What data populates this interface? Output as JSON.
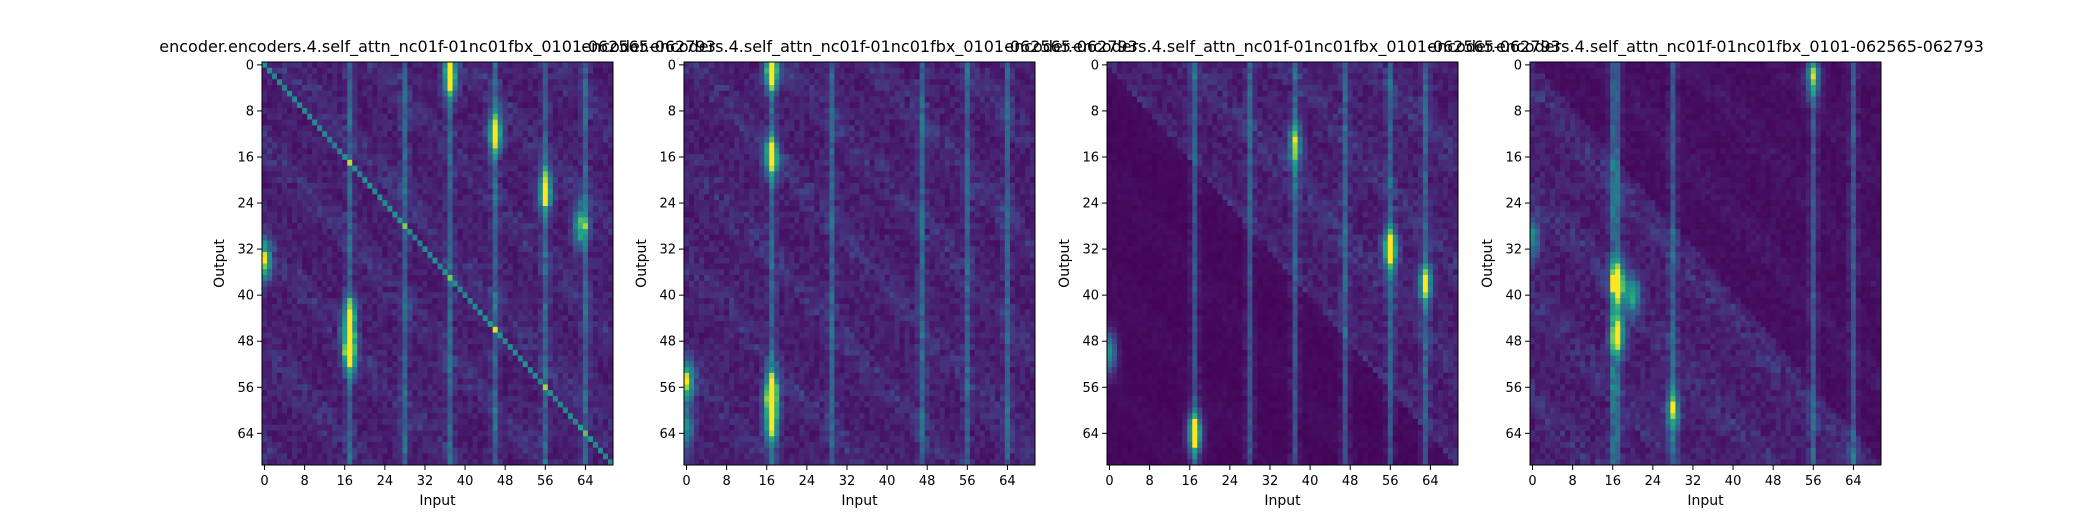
{
  "chart_data": [
    {
      "type": "heatmap",
      "title": "encoder.encoders.4.self_attn_nc01f-01nc01fbx_0101-062565-062793",
      "xlabel": "Input",
      "ylabel": "Output",
      "x_ticks": [
        0,
        8,
        16,
        24,
        32,
        40,
        48,
        56,
        64
      ],
      "y_ticks": [
        0,
        8,
        16,
        24,
        32,
        40,
        48,
        56,
        64
      ],
      "grid_size": 70,
      "colormap": "viridis",
      "diagonal": true,
      "hot_columns": [
        17,
        28,
        37,
        46,
        56,
        64
      ],
      "hot_spots": [
        [
          17,
          50,
          0.95
        ],
        [
          17,
          44,
          0.8
        ],
        [
          46,
          12,
          0.85
        ],
        [
          56,
          22,
          0.8
        ],
        [
          37,
          2,
          0.85
        ],
        [
          0,
          34,
          0.8
        ],
        [
          63,
          28,
          0.7
        ]
      ]
    },
    {
      "type": "heatmap",
      "title": "encoder.encoders.4.self_attn_nc01f-01nc01fbx_0101-062565-062793",
      "xlabel": "Input",
      "ylabel": "Output",
      "x_ticks": [
        0,
        8,
        16,
        24,
        32,
        40,
        48,
        56,
        64
      ],
      "y_ticks": [
        0,
        8,
        16,
        24,
        32,
        40,
        48,
        56,
        64
      ],
      "grid_size": 70,
      "colormap": "viridis",
      "diagonal": false,
      "hot_columns": [
        17,
        29,
        47,
        56,
        64
      ],
      "hot_spots": [
        [
          17,
          1,
          0.95
        ],
        [
          17,
          57,
          1.0
        ],
        [
          17,
          62,
          0.8
        ],
        [
          17,
          16,
          0.8
        ],
        [
          0,
          55,
          0.85
        ],
        [
          0,
          63,
          0.5
        ]
      ]
    },
    {
      "type": "heatmap",
      "title": "encoder.encoders.4.self_attn_nc01f-01nc01fbx_0101-062565-062793",
      "xlabel": "Input",
      "ylabel": "Output",
      "x_ticks": [
        0,
        8,
        16,
        24,
        32,
        40,
        48,
        56,
        64
      ],
      "y_ticks": [
        0,
        8,
        16,
        24,
        32,
        40,
        48,
        56,
        64
      ],
      "grid_size": 70,
      "colormap": "viridis",
      "diagonal": false,
      "upper_bias": true,
      "hot_columns": [
        17,
        28,
        37,
        47,
        56,
        63
      ],
      "hot_spots": [
        [
          56,
          32,
          0.95
        ],
        [
          17,
          64,
          0.95
        ],
        [
          63,
          38,
          0.7
        ],
        [
          37,
          14,
          0.6
        ],
        [
          0,
          50,
          0.6
        ]
      ]
    },
    {
      "type": "heatmap",
      "title": "encoder.encoders.4.self_attn_nc01f-01nc01fbx_0101-062565-062793",
      "xlabel": "Input",
      "ylabel": "Output",
      "x_ticks": [
        0,
        8,
        16,
        24,
        32,
        40,
        48,
        56,
        64
      ],
      "y_ticks": [
        0,
        8,
        16,
        24,
        32,
        40,
        48,
        56,
        64
      ],
      "grid_size": 70,
      "colormap": "viridis",
      "diagonal": false,
      "lower_bias": true,
      "hot_columns": [
        16,
        17,
        28,
        56,
        64
      ],
      "hot_spots": [
        [
          17,
          38,
          0.95
        ],
        [
          17,
          47,
          0.8
        ],
        [
          20,
          40,
          0.6
        ],
        [
          28,
          60,
          0.6
        ],
        [
          56,
          2,
          0.6
        ],
        [
          0,
          30,
          0.5
        ]
      ]
    }
  ]
}
